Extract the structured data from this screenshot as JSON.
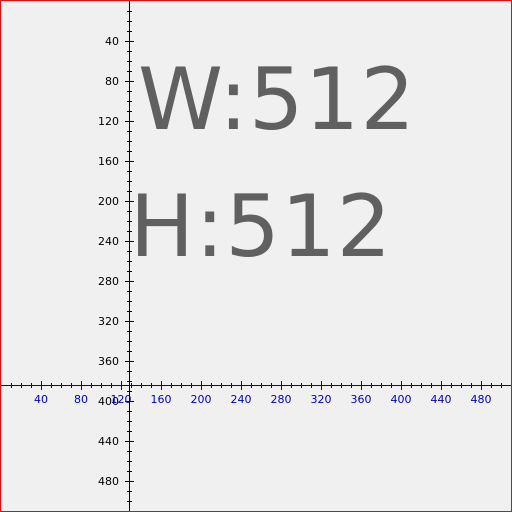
{
  "display": {
    "width_text": "W:512",
    "height_text": "H:512"
  },
  "axes": {
    "x_tick_labels": [
      "40",
      "80",
      "120",
      "160",
      "200",
      "240",
      "280",
      "320",
      "360",
      "400",
      "440",
      "480"
    ],
    "y_tick_labels": [
      "40",
      "80",
      "120",
      "160",
      "200",
      "240",
      "280",
      "320",
      "360",
      "400",
      "440",
      "480"
    ]
  },
  "colors": {
    "background": "#f0f0f0",
    "border": "#ff0000",
    "y_axis_text": "#000000",
    "x_axis_text": "#0000c0",
    "big_text": "#606060"
  }
}
